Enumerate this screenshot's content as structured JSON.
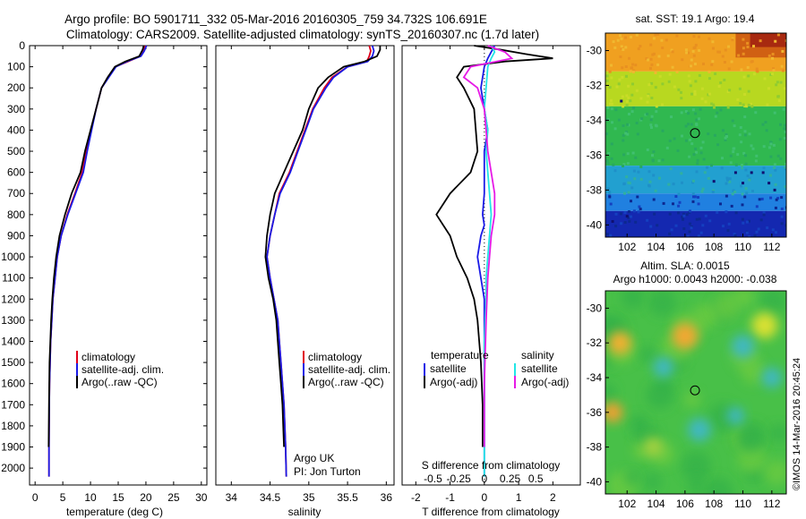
{
  "header": {
    "line1": "Argo profile: BO 5901711_332 05-Mar-2016 20160305_759 34.732S 106.691E",
    "line2": "Climatology: CARS2009. Satellite-adjusted climatology: synTS_20160307.nc (1.7d later)"
  },
  "credit": "©IMOS 14-Mar-2016 20:45:24",
  "colors": {
    "red": "#e0001a",
    "blue": "#1a1ae6",
    "black": "#000000",
    "cyan": "#22e6e6",
    "magenta": "#e61ae6"
  },
  "panels": {
    "temperature": {
      "xlabel": "temperature (deg C)",
      "legend": [
        "climatology",
        "satellite-adj. clim.",
        "Argo(..raw -QC)"
      ]
    },
    "salinity": {
      "xlabel": "salinity",
      "legend": [
        "climatology",
        "satellite-adj. clim.",
        "Argo(..raw -QC)"
      ],
      "note1": "Argo UK",
      "note2": "PI: Jon Turton"
    },
    "difference": {
      "top_label": "S difference from climatology",
      "xlabel": "T difference from climatology",
      "legend_head_t": "temperature",
      "legend_head_s": "salinity",
      "legend_t": [
        "satellite",
        "Argo(-adj)"
      ],
      "legend_s": [
        "satellite",
        "Argo(-adj)"
      ]
    },
    "sst_map": {
      "title": "sat. SST: 19.1 Argo: 19.4"
    },
    "sla_map": {
      "title1": "Altim. SLA: 0.0015",
      "title2": "Argo h1000: 0.0043 h2000: -0.038"
    }
  },
  "chart_data": [
    {
      "type": "line",
      "name": "temperature",
      "xlabel": "temperature (deg C)",
      "ylabel": "",
      "xlim": [
        -1,
        31
      ],
      "ylim": [
        2080,
        0
      ],
      "xticks": [
        0,
        5,
        10,
        15,
        20,
        25,
        30
      ],
      "yticks": [
        0,
        100,
        200,
        300,
        400,
        500,
        600,
        700,
        800,
        900,
        1000,
        1100,
        1200,
        1300,
        1400,
        1500,
        1600,
        1700,
        1800,
        1900,
        2000
      ],
      "series": [
        {
          "name": "climatology",
          "color": "#e0001a",
          "x": [
            19.8,
            19.6,
            19.0,
            16.8,
            14.5,
            13.2,
            12.0,
            11.0,
            10.1,
            9.2,
            8.5,
            7.2,
            5.8,
            4.7,
            4.0,
            3.6,
            3.2,
            3.0,
            2.8,
            2.7,
            2.6,
            2.55,
            2.5,
            2.5
          ],
          "y": [
            0,
            25,
            50,
            75,
            100,
            150,
            200,
            300,
            400,
            500,
            600,
            700,
            800,
            900,
            1000,
            1100,
            1200,
            1300,
            1400,
            1500,
            1600,
            1700,
            1900,
            2040
          ]
        },
        {
          "name": "satellite-adj. clim.",
          "color": "#1a1ae6",
          "x": [
            20.1,
            19.7,
            19.1,
            16.6,
            14.6,
            13.3,
            12.0,
            11.0,
            10.2,
            9.4,
            8.7,
            7.3,
            5.9,
            4.7,
            4.0,
            3.6,
            3.2,
            3.0,
            2.8,
            2.7,
            2.6,
            2.55,
            2.5,
            2.5
          ],
          "y": [
            0,
            25,
            50,
            75,
            100,
            150,
            200,
            300,
            400,
            500,
            600,
            700,
            800,
            900,
            1000,
            1100,
            1200,
            1300,
            1400,
            1500,
            1600,
            1700,
            1900,
            2040
          ]
        },
        {
          "name": "Argo(..raw -QC)",
          "color": "#000000",
          "x": [
            19.6,
            19.4,
            18.8,
            16.3,
            14.4,
            13.1,
            12.0,
            11.0,
            10.0,
            9.0,
            8.2,
            6.6,
            5.4,
            4.4,
            3.8,
            3.4,
            3.1,
            2.9,
            2.75,
            2.6,
            2.55,
            2.5,
            2.45
          ],
          "y": [
            0,
            20,
            50,
            75,
            100,
            150,
            200,
            300,
            400,
            500,
            600,
            700,
            800,
            900,
            1000,
            1100,
            1200,
            1300,
            1400,
            1500,
            1600,
            1700,
            1900
          ]
        }
      ]
    },
    {
      "type": "line",
      "name": "salinity",
      "xlabel": "salinity",
      "xlim": [
        33.8,
        36.1
      ],
      "ylim": [
        2080,
        0
      ],
      "xticks": [
        34,
        34.5,
        35,
        35.5,
        36
      ],
      "series": [
        {
          "name": "climatology",
          "color": "#e0001a",
          "x": [
            35.78,
            35.8,
            35.78,
            35.75,
            35.5,
            35.3,
            35.2,
            35.05,
            34.95,
            34.85,
            34.75,
            34.62,
            34.56,
            34.5,
            34.46,
            34.5,
            34.55,
            34.6,
            34.62,
            34.64,
            34.66,
            34.68,
            34.7,
            34.71
          ],
          "y": [
            0,
            25,
            50,
            75,
            100,
            150,
            200,
            300,
            400,
            500,
            600,
            700,
            800,
            900,
            1000,
            1100,
            1200,
            1300,
            1400,
            1500,
            1600,
            1700,
            1900,
            2040
          ]
        },
        {
          "name": "satellite-adj. clim.",
          "color": "#1a1ae6",
          "x": [
            35.82,
            35.84,
            35.82,
            35.76,
            35.5,
            35.32,
            35.22,
            35.06,
            34.96,
            34.86,
            34.76,
            34.63,
            34.56,
            34.5,
            34.46,
            34.5,
            34.55,
            34.6,
            34.62,
            34.64,
            34.66,
            34.68,
            34.7,
            34.71
          ],
          "y": [
            0,
            25,
            50,
            75,
            100,
            150,
            200,
            300,
            400,
            500,
            600,
            700,
            800,
            900,
            1000,
            1100,
            1200,
            1300,
            1400,
            1500,
            1600,
            1700,
            1900,
            2040
          ]
        },
        {
          "name": "Argo(..raw -QC)",
          "color": "#000000",
          "x": [
            35.92,
            35.92,
            35.88,
            35.72,
            35.45,
            35.25,
            35.12,
            35.0,
            34.92,
            34.8,
            34.68,
            34.56,
            34.5,
            34.46,
            34.44,
            34.48,
            34.54,
            34.58,
            34.6,
            34.62,
            34.64,
            34.66,
            34.68
          ],
          "y": [
            0,
            20,
            50,
            75,
            100,
            150,
            200,
            300,
            400,
            500,
            600,
            700,
            800,
            900,
            1000,
            1100,
            1200,
            1300,
            1400,
            1500,
            1600,
            1700,
            1900
          ]
        }
      ]
    },
    {
      "type": "line",
      "name": "difference",
      "xlabel": "T difference from climatology",
      "top_label": "S difference from climatology",
      "xlim": [
        -2.4,
        2.8
      ],
      "ylim": [
        2080,
        0
      ],
      "xticks": [
        -2,
        -1,
        0,
        1,
        2
      ],
      "top_ticks": [
        "-0.5",
        "-0.25",
        "0",
        "0.25",
        "0.5"
      ],
      "series": [
        {
          "name": "temperature satellite",
          "color": "#1a1ae6",
          "x": [
            0.3,
            0.2,
            0.1,
            0.0,
            -0.1,
            0.0,
            0.1,
            0.0,
            0.0,
            0.0,
            -0.05,
            0.0,
            -0.1,
            -0.15,
            -0.2,
            -0.1,
            0.0,
            0.0,
            0.0,
            0.0
          ],
          "y": [
            0,
            30,
            60,
            100,
            200,
            300,
            400,
            500,
            600,
            700,
            800,
            850,
            900,
            950,
            1000,
            1100,
            1200,
            1400,
            1700,
            2040
          ]
        },
        {
          "name": "temperature Argo(-adj)",
          "color": "#000000",
          "x": [
            -0.3,
            0.5,
            1.2,
            2.0,
            0.6,
            -0.6,
            -0.8,
            -0.6,
            -0.3,
            -0.2,
            -0.4,
            -1.0,
            -1.4,
            -1.2,
            -1.0,
            -0.8,
            -0.5,
            -0.3,
            -0.2,
            -0.1,
            -0.05,
            -0.05
          ],
          "y": [
            0,
            20,
            40,
            60,
            75,
            100,
            150,
            200,
            300,
            500,
            600,
            700,
            800,
            850,
            900,
            1000,
            1100,
            1200,
            1300,
            1500,
            1700,
            1900
          ]
        },
        {
          "name": "salinity satellite",
          "color": "#22e6e6",
          "x": [
            0.2,
            0.3,
            0.2,
            0.1,
            0.05,
            0.0,
            0.1,
            0.05,
            0.1,
            0.15,
            0.2,
            0.15,
            0.1,
            0.05,
            0.05,
            0.0,
            0.0,
            0.0
          ],
          "y": [
            0,
            30,
            60,
            100,
            200,
            300,
            400,
            500,
            600,
            700,
            800,
            900,
            1000,
            1100,
            1200,
            1400,
            1700,
            2040
          ]
        },
        {
          "name": "salinity Argo(-adj)",
          "color": "#e61ae6",
          "x": [
            0.1,
            0.6,
            0.8,
            -0.4,
            -0.6,
            -0.2,
            0.0,
            0.05,
            0.1,
            0.2,
            0.3,
            0.3,
            0.2,
            0.15,
            0.1,
            0.05,
            0.0,
            0.0
          ],
          "y": [
            0,
            30,
            60,
            100,
            150,
            200,
            300,
            400,
            500,
            600,
            700,
            800,
            900,
            1000,
            1100,
            1300,
            1600,
            1900
          ]
        }
      ]
    },
    {
      "type": "heatmap",
      "name": "sat. SST",
      "title": "sat. SST: 19.1 Argo: 19.4",
      "xlim": [
        100.5,
        113
      ],
      "ylim": [
        -40.7,
        -29
      ],
      "xticks": [
        102,
        104,
        106,
        108,
        110,
        112
      ],
      "yticks": [
        -30,
        -32,
        -34,
        -36,
        -38,
        -40
      ],
      "marker": {
        "lon": 106.691,
        "lat": -34.732
      },
      "bands": [
        {
          "lat_top": -29,
          "lat_bottom": -31.2,
          "color": "#f0a020"
        },
        {
          "lat_top": -31.2,
          "lat_bottom": -33.2,
          "color": "#b8d820"
        },
        {
          "lat_top": -33.2,
          "lat_bottom": -36.6,
          "color": "#30b850"
        },
        {
          "lat_top": -36.6,
          "lat_bottom": -38.2,
          "color": "#22a0d0"
        },
        {
          "lat_top": -38.2,
          "lat_bottom": -39.2,
          "color": "#2080e0"
        },
        {
          "lat_top": -39.2,
          "lat_bottom": -40.7,
          "color": "#1428b0"
        }
      ]
    },
    {
      "type": "heatmap",
      "name": "Altim. SLA",
      "title": "Altim. SLA: 0.0015",
      "xlim": [
        100.5,
        113
      ],
      "ylim": [
        -40.7,
        -29
      ],
      "xticks": [
        102,
        104,
        106,
        108,
        110,
        112
      ],
      "yticks": [
        -30,
        -32,
        -34,
        -36,
        -38,
        -40
      ],
      "marker": {
        "lon": 106.691,
        "lat": -34.732
      },
      "blobs": [
        {
          "lon": 101.5,
          "lat": -32.0,
          "r": 0.8,
          "color": "#f0b030"
        },
        {
          "lon": 106.0,
          "lat": -31.6,
          "r": 0.9,
          "color": "#f0a830"
        },
        {
          "lon": 101.0,
          "lat": -36.0,
          "r": 0.7,
          "color": "#f0a030"
        },
        {
          "lon": 111.5,
          "lat": -31.0,
          "r": 0.9,
          "color": "#d8e030"
        },
        {
          "lon": 110.0,
          "lat": -32.2,
          "r": 0.8,
          "color": "#40b8c0"
        },
        {
          "lon": 112.0,
          "lat": -34.0,
          "r": 0.7,
          "color": "#40b8c0"
        },
        {
          "lon": 104.5,
          "lat": -33.4,
          "r": 0.7,
          "color": "#40b8c0"
        },
        {
          "lon": 107.0,
          "lat": -37.0,
          "r": 0.8,
          "color": "#40b8c0"
        },
        {
          "lon": 109.5,
          "lat": -36.2,
          "r": 0.6,
          "color": "#40b8c0"
        },
        {
          "lon": 103.8,
          "lat": -38.0,
          "r": 0.7,
          "color": "#a0d040"
        }
      ]
    }
  ]
}
